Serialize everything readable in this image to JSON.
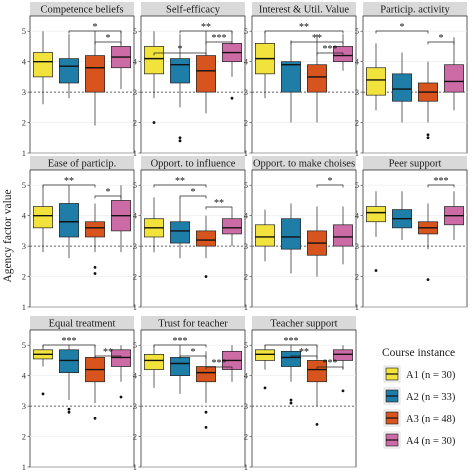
{
  "chart_data": {
    "type": "box",
    "ylabel": "Agency factor value",
    "ylim": [
      1,
      5.5
    ],
    "yticks": [
      1,
      2,
      3,
      4,
      5
    ],
    "reference_line": 3,
    "legend": {
      "title": "Course instance",
      "placement": "bottom-right",
      "entries": [
        {
          "label": "A1 (n = 30)",
          "color": "#f2e33c"
        },
        {
          "label": "A2 (n = 33)",
          "color": "#1f7ea8"
        },
        {
          "label": "A3 (n = 48)",
          "color": "#d8541f"
        },
        {
          "label": "A4 (n = 30)",
          "color": "#cc6ba6"
        }
      ]
    },
    "panels": [
      {
        "title": "Competence beliefs",
        "boxes": [
          {
            "q1": 3.5,
            "median": 4.0,
            "q3": 4.3,
            "wlo": 2.6,
            "whi": 5.0,
            "outliers": []
          },
          {
            "q1": 3.3,
            "median": 3.85,
            "q3": 4.1,
            "wlo": 2.8,
            "whi": 4.9,
            "outliers": []
          },
          {
            "q1": 3.0,
            "median": 3.8,
            "q3": 4.2,
            "wlo": 1.9,
            "whi": 5.0,
            "outliers": []
          },
          {
            "q1": 3.8,
            "median": 4.15,
            "q3": 4.5,
            "wlo": 3.1,
            "whi": 5.0,
            "outliers": []
          }
        ],
        "brackets": [
          {
            "from": 1,
            "to": 3,
            "stars": "*",
            "level": 0
          },
          {
            "from": 2,
            "to": 3,
            "stars": "*",
            "level": 1
          }
        ]
      },
      {
        "title": "Self-efficacy",
        "boxes": [
          {
            "q1": 3.6,
            "median": 4.1,
            "q3": 4.5,
            "wlo": 2.8,
            "whi": 5.0,
            "outliers": [
              2.0
            ]
          },
          {
            "q1": 3.3,
            "median": 3.9,
            "q3": 4.1,
            "wlo": 2.5,
            "whi": 4.9,
            "outliers": [
              1.5,
              1.4
            ]
          },
          {
            "q1": 3.0,
            "median": 3.7,
            "q3": 4.2,
            "wlo": 2.3,
            "whi": 5.0,
            "outliers": []
          },
          {
            "q1": 4.0,
            "median": 4.3,
            "q3": 4.6,
            "wlo": 3.5,
            "whi": 5.0,
            "outliers": [
              2.8
            ]
          }
        ],
        "brackets": [
          {
            "from": 1,
            "to": 3,
            "stars": "**",
            "level": 0
          },
          {
            "from": 2,
            "to": 3,
            "stars": "***",
            "level": 1
          },
          {
            "from": 0,
            "to": 2,
            "stars": "*",
            "level": 2
          }
        ]
      },
      {
        "title": "Interest & Util. Value",
        "boxes": [
          {
            "q1": 3.6,
            "median": 4.1,
            "q3": 4.6,
            "wlo": 2.8,
            "whi": 5.0,
            "outliers": []
          },
          {
            "q1": 3.0,
            "median": 3.9,
            "q3": 4.0,
            "wlo": 2.0,
            "whi": 4.7,
            "outliers": []
          },
          {
            "q1": 3.0,
            "median": 3.5,
            "q3": 3.9,
            "wlo": 2.0,
            "whi": 4.9,
            "outliers": []
          },
          {
            "q1": 4.0,
            "median": 4.2,
            "q3": 4.5,
            "wlo": 3.7,
            "whi": 4.9,
            "outliers": []
          }
        ],
        "brackets": [
          {
            "from": 0,
            "to": 3,
            "stars": "**",
            "level": 0
          },
          {
            "from": 1,
            "to": 3,
            "stars": "**",
            "level": 1
          },
          {
            "from": 2,
            "to": 3,
            "stars": "***",
            "level": 2
          }
        ]
      },
      {
        "title": "Particip. activity",
        "boxes": [
          {
            "q1": 2.9,
            "median": 3.4,
            "q3": 3.8,
            "wlo": 2.4,
            "whi": 4.6,
            "outliers": []
          },
          {
            "q1": 2.7,
            "median": 3.1,
            "q3": 3.6,
            "wlo": 2.0,
            "whi": 4.3,
            "outliers": []
          },
          {
            "q1": 2.7,
            "median": 3.0,
            "q3": 3.3,
            "wlo": 2.0,
            "whi": 4.0,
            "outliers": [
              1.6,
              1.5
            ]
          },
          {
            "q1": 3.0,
            "median": 3.35,
            "q3": 3.9,
            "wlo": 2.4,
            "whi": 4.8,
            "outliers": []
          }
        ],
        "brackets": [
          {
            "from": 0,
            "to": 2,
            "stars": "*",
            "level": 0
          },
          {
            "from": 2,
            "to": 3,
            "stars": "*",
            "level": 1
          }
        ]
      },
      {
        "title": "Ease of particip.",
        "boxes": [
          {
            "q1": 3.6,
            "median": 4.0,
            "q3": 4.3,
            "wlo": 2.8,
            "whi": 5.0,
            "outliers": []
          },
          {
            "q1": 3.3,
            "median": 3.8,
            "q3": 4.4,
            "wlo": 2.6,
            "whi": 5.0,
            "outliers": []
          },
          {
            "q1": 3.3,
            "median": 3.6,
            "q3": 3.8,
            "wlo": 2.8,
            "whi": 4.4,
            "outliers": [
              2.3,
              2.1
            ]
          },
          {
            "q1": 3.5,
            "median": 4.0,
            "q3": 4.5,
            "wlo": 2.8,
            "whi": 5.0,
            "outliers": []
          }
        ],
        "brackets": [
          {
            "from": 0,
            "to": 2,
            "stars": "**",
            "level": 0
          },
          {
            "from": 2,
            "to": 3,
            "stars": "*",
            "level": 1
          }
        ]
      },
      {
        "title": "Opport. to influence",
        "boxes": [
          {
            "q1": 3.3,
            "median": 3.6,
            "q3": 3.9,
            "wlo": 2.8,
            "whi": 4.6,
            "outliers": []
          },
          {
            "q1": 3.1,
            "median": 3.5,
            "q3": 3.8,
            "wlo": 2.6,
            "whi": 4.6,
            "outliers": []
          },
          {
            "q1": 3.0,
            "median": 3.2,
            "q3": 3.5,
            "wlo": 2.6,
            "whi": 4.0,
            "outliers": [
              2.0
            ]
          },
          {
            "q1": 3.4,
            "median": 3.6,
            "q3": 3.9,
            "wlo": 3.0,
            "whi": 4.2,
            "outliers": []
          }
        ],
        "brackets": [
          {
            "from": 0,
            "to": 2,
            "stars": "**",
            "level": 0
          },
          {
            "from": 1,
            "to": 2,
            "stars": "*",
            "level": 1
          },
          {
            "from": 2,
            "to": 3,
            "stars": "**",
            "level": 2
          }
        ]
      },
      {
        "title": "Opport. to make choises",
        "boxes": [
          {
            "q1": 3.0,
            "median": 3.3,
            "q3": 3.7,
            "wlo": 2.5,
            "whi": 4.2,
            "outliers": []
          },
          {
            "q1": 2.9,
            "median": 3.3,
            "q3": 3.9,
            "wlo": 2.1,
            "whi": 4.4,
            "outliers": []
          },
          {
            "q1": 2.7,
            "median": 3.1,
            "q3": 3.5,
            "wlo": 2.0,
            "whi": 4.3,
            "outliers": []
          },
          {
            "q1": 3.0,
            "median": 3.3,
            "q3": 3.7,
            "wlo": 2.4,
            "whi": 4.3,
            "outliers": []
          }
        ],
        "brackets": [
          {
            "from": 2,
            "to": 3,
            "stars": "*",
            "level": 0
          }
        ]
      },
      {
        "title": "Peer support",
        "boxes": [
          {
            "q1": 3.8,
            "median": 4.1,
            "q3": 4.3,
            "wlo": 3.3,
            "whi": 4.8,
            "outliers": [
              2.2
            ]
          },
          {
            "q1": 3.6,
            "median": 3.9,
            "q3": 4.2,
            "wlo": 3.2,
            "whi": 4.8,
            "outliers": []
          },
          {
            "q1": 3.4,
            "median": 3.6,
            "q3": 3.8,
            "wlo": 2.9,
            "whi": 4.4,
            "outliers": [
              1.9
            ]
          },
          {
            "q1": 3.7,
            "median": 4.0,
            "q3": 4.3,
            "wlo": 3.2,
            "whi": 4.8,
            "outliers": []
          }
        ],
        "brackets": [
          {
            "from": 2,
            "to": 3,
            "stars": "***",
            "level": 0
          }
        ]
      },
      {
        "title": "Equal treatment",
        "boxes": [
          {
            "q1": 4.55,
            "median": 4.7,
            "q3": 4.85,
            "wlo": 4.3,
            "whi": 5.0,
            "outliers": [
              3.4
            ]
          },
          {
            "q1": 4.1,
            "median": 4.5,
            "q3": 4.85,
            "wlo": 3.2,
            "whi": 5.0,
            "outliers": [
              2.9,
              2.8
            ]
          },
          {
            "q1": 3.8,
            "median": 4.2,
            "q3": 4.6,
            "wlo": 3.1,
            "whi": 5.0,
            "outliers": [
              2.6
            ]
          },
          {
            "q1": 4.3,
            "median": 4.6,
            "q3": 4.85,
            "wlo": 3.8,
            "whi": 5.0,
            "outliers": [
              3.3
            ]
          }
        ],
        "brackets": [
          {
            "from": 0,
            "to": 2,
            "stars": "***",
            "level": 0
          },
          {
            "from": 2,
            "to": 3,
            "stars": "**",
            "level": 1
          }
        ]
      },
      {
        "title": "Trust for teacher",
        "boxes": [
          {
            "q1": 4.2,
            "median": 4.5,
            "q3": 4.7,
            "wlo": 3.6,
            "whi": 5.0,
            "outliers": []
          },
          {
            "q1": 4.0,
            "median": 4.4,
            "q3": 4.6,
            "wlo": 3.4,
            "whi": 5.0,
            "outliers": []
          },
          {
            "q1": 3.8,
            "median": 4.1,
            "q3": 4.3,
            "wlo": 3.1,
            "whi": 4.8,
            "outliers": [
              2.8,
              2.3
            ]
          },
          {
            "q1": 4.2,
            "median": 4.5,
            "q3": 4.8,
            "wlo": 3.8,
            "whi": 5.0,
            "outliers": []
          }
        ],
        "brackets": [
          {
            "from": 0,
            "to": 2,
            "stars": "***",
            "level": 0
          },
          {
            "from": 1,
            "to": 2,
            "stars": "*",
            "level": 1
          },
          {
            "from": 2,
            "to": 3,
            "stars": "***",
            "level": 2
          }
        ]
      },
      {
        "title": "Teacher support",
        "boxes": [
          {
            "q1": 4.5,
            "median": 4.7,
            "q3": 4.85,
            "wlo": 4.2,
            "whi": 5.0,
            "outliers": [
              3.6
            ]
          },
          {
            "q1": 4.3,
            "median": 4.6,
            "q3": 4.8,
            "wlo": 3.8,
            "whi": 5.0,
            "outliers": [
              3.2,
              3.1
            ]
          },
          {
            "q1": 3.8,
            "median": 4.2,
            "q3": 4.5,
            "wlo": 3.0,
            "whi": 5.0,
            "outliers": [
              2.4
            ]
          },
          {
            "q1": 4.5,
            "median": 4.7,
            "q3": 4.85,
            "wlo": 4.2,
            "whi": 5.0,
            "outliers": [
              3.5
            ]
          }
        ],
        "brackets": [
          {
            "from": 0,
            "to": 2,
            "stars": "***",
            "level": 0
          },
          {
            "from": 1,
            "to": 2,
            "stars": "**",
            "level": 1
          },
          {
            "from": 2,
            "to": 3,
            "stars": "***",
            "level": 2
          }
        ]
      }
    ]
  }
}
